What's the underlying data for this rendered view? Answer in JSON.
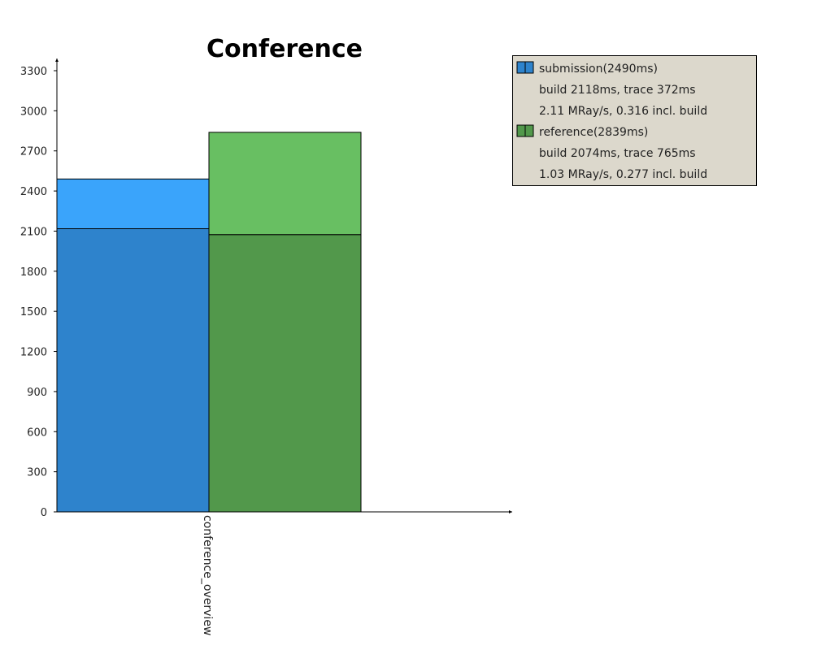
{
  "chart_data": {
    "type": "bar",
    "title": "Conference",
    "categories": [
      "conference_overview"
    ],
    "ylim": [
      0,
      3300
    ],
    "yticks": [
      0,
      300,
      600,
      900,
      1200,
      1500,
      1800,
      2100,
      2400,
      2700,
      3000,
      3300
    ],
    "grid": false,
    "legend_position": "top-right",
    "series": [
      {
        "name": "submission(2490ms)",
        "total": 2490,
        "build": 2118,
        "trace": 372,
        "build_color": "#2e83cc",
        "trace_color": "#3aa4fb",
        "legend_lines": [
          "build 2118ms, trace 372ms",
          "2.11 MRay/s, 0.316 incl. build"
        ]
      },
      {
        "name": "reference(2839ms)",
        "total": 2839,
        "build": 2074,
        "trace": 765,
        "build_color": "#52984b",
        "trace_color": "#68bf62",
        "legend_lines": [
          "build 2074ms, trace 765ms",
          "1.03 MRay/s, 0.277 incl. build"
        ]
      }
    ],
    "legend_background": "#dcd8cc"
  }
}
